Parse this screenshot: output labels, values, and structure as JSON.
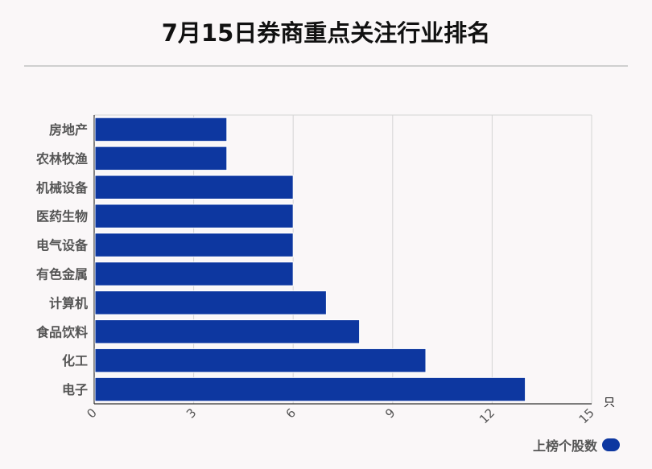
{
  "chart_data": {
    "type": "bar",
    "orientation": "horizontal",
    "title": "7月15日券商重点关注行业排名",
    "categories": [
      "房地产",
      "农林牧渔",
      "机械设备",
      "医药生物",
      "电气设备",
      "有色金属",
      "计算机",
      "食品饮料",
      "化工",
      "电子"
    ],
    "series": [
      {
        "name": "上榜个股数",
        "values": [
          4,
          4,
          6,
          6,
          6,
          6,
          7,
          8,
          10,
          13
        ]
      }
    ],
    "x_ticks": [
      0,
      3,
      6,
      9,
      12,
      15
    ],
    "xlim": [
      0,
      15
    ],
    "x_unit": "只",
    "grid": true,
    "legend_position": "bottom-right",
    "bar_color": "#0d37a0"
  }
}
